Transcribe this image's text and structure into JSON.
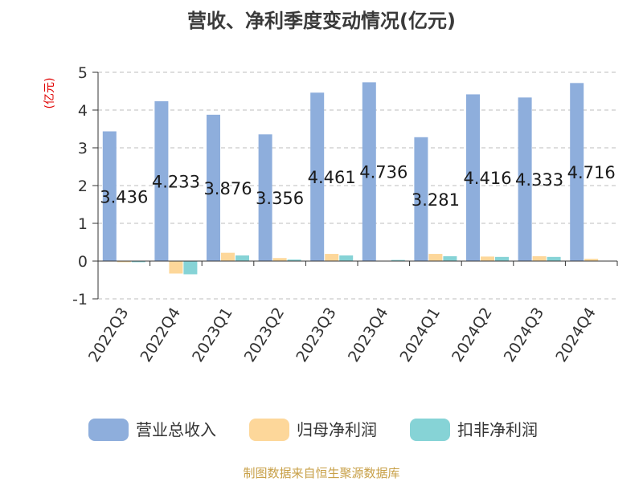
{
  "chart_data": {
    "type": "bar",
    "title": "营收、净利季度变动情况(亿元)",
    "y_unit": "(亿元)",
    "categories": [
      "2022Q3",
      "2022Q4",
      "2023Q1",
      "2023Q2",
      "2023Q3",
      "2023Q4",
      "2024Q1",
      "2024Q2",
      "2024Q3",
      "2024Q4"
    ],
    "series": [
      {
        "name": "营业总收入",
        "color": "#8eaedc",
        "values": [
          3.436,
          4.233,
          3.876,
          3.356,
          4.461,
          4.736,
          3.281,
          4.416,
          4.333,
          4.716
        ]
      },
      {
        "name": "归母净利润",
        "color": "#fdd79a",
        "values": [
          -0.03,
          -0.33,
          0.22,
          0.08,
          0.19,
          0.0,
          0.19,
          0.12,
          0.13,
          0.06
        ]
      },
      {
        "name": "扣非净利润",
        "color": "#86d3d6",
        "values": [
          -0.03,
          -0.35,
          0.15,
          0.04,
          0.15,
          0.03,
          0.13,
          0.11,
          0.11,
          0.0
        ]
      }
    ],
    "data_labels": [
      "3.436",
      "4.233",
      "3.876",
      "3.356",
      "4.461",
      "4.736",
      "3.281",
      "4.416",
      "4.333",
      "4.716"
    ],
    "y_ticks": [
      "5",
      "4",
      "3",
      "2",
      "1",
      "0",
      "-1"
    ],
    "ylim": [
      -1,
      5
    ],
    "grid": true,
    "legend_position": "bottom"
  },
  "source": "制图数据来自恒生聚源数据库"
}
